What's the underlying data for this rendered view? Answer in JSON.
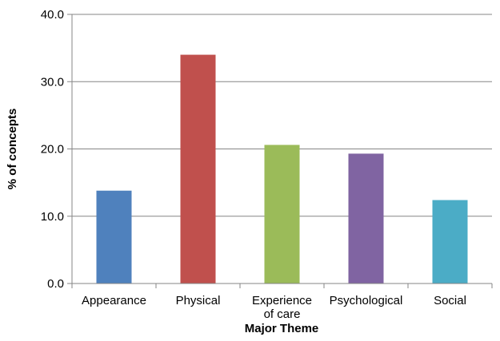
{
  "chart_data": {
    "type": "bar",
    "categories": [
      [
        "Appearance"
      ],
      [
        "Physical"
      ],
      [
        "Experience",
        "of care"
      ],
      [
        "Psychological"
      ],
      [
        "Social"
      ]
    ],
    "values": [
      13.8,
      34.0,
      20.6,
      19.3,
      12.4
    ],
    "colors": [
      "#4f81bd",
      "#c0504d",
      "#9bbb59",
      "#8064a2",
      "#4bacc6"
    ],
    "xlabel": "Major Theme",
    "ylabel": "% of concepts",
    "ylim": [
      0,
      40
    ],
    "yticks": [
      "0.0",
      "10.0",
      "20.0",
      "30.0",
      "40.0"
    ],
    "ytick_values": [
      0,
      10,
      20,
      30,
      40
    ],
    "grid": true,
    "legend": "none"
  }
}
